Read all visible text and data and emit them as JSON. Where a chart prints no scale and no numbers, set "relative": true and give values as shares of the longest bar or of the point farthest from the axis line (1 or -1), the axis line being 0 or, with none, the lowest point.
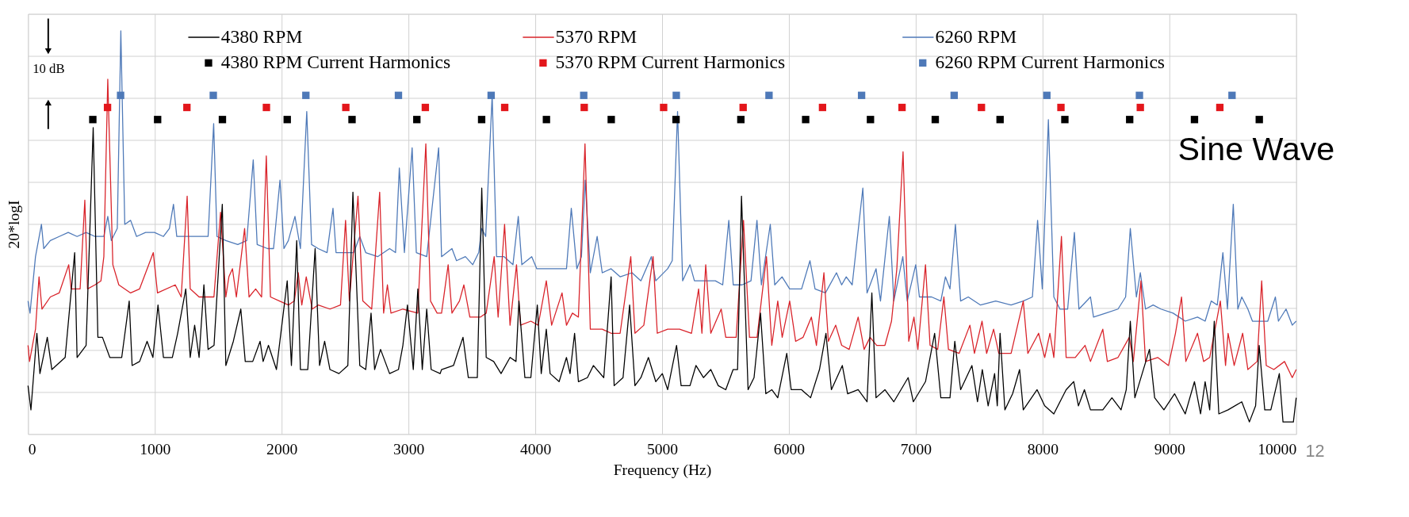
{
  "chart_data": {
    "type": "line",
    "relative": true,
    "xlabel": "Frequency (Hz)",
    "ylabel": "20*logI",
    "xlim": [
      0,
      10000
    ],
    "xticks": [
      0,
      1000,
      2000,
      3000,
      4000,
      5000,
      6000,
      7000,
      8000,
      9000,
      10000
    ],
    "grid": true,
    "legend": "top",
    "tick_labels": "x",
    "line_style": "solid",
    "annotations": [
      "10 dB",
      "Sine Wave",
      "12"
    ],
    "series": [
      {
        "name": "4380 RPM",
        "color": "#000000",
        "type": "line",
        "x": [
          0,
          23,
          70,
          94,
          152,
          188,
          293,
          368,
          387,
          458,
          514,
          551,
          587,
          645,
          739,
          798,
          821,
          880,
          939,
          985,
          1025,
          1068,
          1138,
          1180,
          1244,
          1279,
          1314,
          1349,
          1387,
          1420,
          1467,
          1532,
          1560,
          1619,
          1678,
          1713,
          1772,
          1830,
          1854,
          1896,
          1959,
          2044,
          2077,
          2119,
          2148,
          2206,
          2264,
          2299,
          2339,
          2381,
          2452,
          2522,
          2562,
          2616,
          2663,
          2705,
          2733,
          2780,
          2851,
          2921,
          2956,
          2992,
          3038,
          3074,
          3109,
          3144,
          3179,
          3250,
          3261,
          3355,
          3430,
          3472,
          3543,
          3578,
          3613,
          3672,
          3730,
          3801,
          3848,
          3871,
          3918,
          3965,
          4016,
          4047,
          4087,
          4117,
          4188,
          4246,
          4274,
          4310,
          4340,
          4411,
          4458,
          4540,
          4598,
          4622,
          4692,
          4744,
          4786,
          4833,
          4892,
          4950,
          5002,
          5044,
          5114,
          5150,
          5220,
          5267,
          5326,
          5384,
          5443,
          5502,
          5560,
          5595,
          5626,
          5678,
          5725,
          5776,
          5818,
          5865,
          5912,
          5983,
          6018,
          6100,
          6171,
          6241,
          6292,
          6335,
          6421,
          6463,
          6546,
          6616,
          6654,
          6687,
          6757,
          6827,
          6940,
          6981,
          7077,
          7149,
          7198,
          7270,
          7308,
          7354,
          7443,
          7487,
          7525,
          7571,
          7622,
          7643,
          7665,
          7703,
          7764,
          7819,
          7848,
          7957,
          8017,
          8089,
          8186,
          8246,
          8283,
          8330,
          8378,
          8475,
          8547,
          8619,
          8660,
          8692,
          8728,
          8843,
          8884,
          8957,
          9041,
          9125,
          9198,
          9246,
          9282,
          9318,
          9354,
          9390,
          9463,
          9571,
          9631,
          9680,
          9708,
          9752,
          9800,
          9867,
          9896,
          9978,
          10000
        ],
        "values": [
          0.12,
          0.06,
          0.25,
          0.15,
          0.24,
          0.16,
          0.19,
          0.45,
          0.19,
          0.22,
          0.76,
          0.24,
          0.24,
          0.19,
          0.19,
          0.33,
          0.17,
          0.18,
          0.23,
          0.19,
          0.32,
          0.19,
          0.19,
          0.25,
          0.36,
          0.19,
          0.27,
          0.19,
          0.37,
          0.21,
          0.22,
          0.57,
          0.17,
          0.23,
          0.31,
          0.18,
          0.18,
          0.23,
          0.18,
          0.22,
          0.16,
          0.38,
          0.17,
          0.48,
          0.16,
          0.16,
          0.46,
          0.17,
          0.23,
          0.16,
          0.15,
          0.17,
          0.6,
          0.17,
          0.16,
          0.3,
          0.16,
          0.21,
          0.15,
          0.16,
          0.22,
          0.32,
          0.16,
          0.36,
          0.16,
          0.31,
          0.16,
          0.15,
          0.16,
          0.17,
          0.24,
          0.14,
          0.14,
          0.61,
          0.19,
          0.18,
          0.15,
          0.19,
          0.18,
          0.33,
          0.14,
          0.14,
          0.32,
          0.15,
          0.26,
          0.15,
          0.13,
          0.19,
          0.15,
          0.25,
          0.13,
          0.14,
          0.17,
          0.14,
          0.39,
          0.12,
          0.14,
          0.32,
          0.12,
          0.14,
          0.19,
          0.13,
          0.15,
          0.11,
          0.22,
          0.12,
          0.12,
          0.17,
          0.14,
          0.16,
          0.12,
          0.11,
          0.16,
          0.16,
          0.59,
          0.11,
          0.14,
          0.3,
          0.1,
          0.11,
          0.09,
          0.2,
          0.11,
          0.11,
          0.09,
          0.16,
          0.25,
          0.11,
          0.17,
          0.1,
          0.11,
          0.08,
          0.35,
          0.09,
          0.11,
          0.08,
          0.14,
          0.08,
          0.13,
          0.25,
          0.09,
          0.09,
          0.23,
          0.11,
          0.17,
          0.08,
          0.16,
          0.07,
          0.15,
          0.07,
          0.25,
          0.06,
          0.1,
          0.16,
          0.06,
          0.11,
          0.07,
          0.05,
          0.11,
          0.13,
          0.07,
          0.11,
          0.06,
          0.06,
          0.09,
          0.06,
          0.11,
          0.28,
          0.09,
          0.21,
          0.09,
          0.06,
          0.1,
          0.05,
          0.13,
          0.05,
          0.13,
          0.06,
          0.28,
          0.05,
          0.06,
          0.08,
          0.03,
          0.07,
          0.22,
          0.06,
          0.06,
          0.15,
          0.03,
          0.03,
          0.09
        ]
      },
      {
        "name": "5370 RPM",
        "color": "#d9232a",
        "type": "line",
        "x": [
          0,
          12,
          59,
          87,
          110,
          176,
          246,
          321,
          340,
          411,
          448,
          469,
          528,
          575,
          598,
          629,
          669,
          716,
          809,
          880,
          988,
          1021,
          1161,
          1208,
          1255,
          1279,
          1349,
          1466,
          1518,
          1560,
          1584,
          1612,
          1643,
          1708,
          1743,
          1795,
          1842,
          1879,
          1912,
          1983,
          2053,
          2100,
          2131,
          2159,
          2194,
          2241,
          2288,
          2381,
          2464,
          2504,
          2534,
          2602,
          2640,
          2710,
          2773,
          2804,
          2834,
          2862,
          2956,
          3073,
          3137,
          3174,
          3226,
          3261,
          3313,
          3343,
          3402,
          3437,
          3484,
          3566,
          3613,
          3676,
          3707,
          3758,
          3801,
          3852,
          3883,
          3965,
          4023,
          4087,
          4129,
          4211,
          4246,
          4293,
          4340,
          4392,
          4434,
          4528,
          4598,
          4669,
          4753,
          4786,
          4856,
          4929,
          4962,
          5044,
          5138,
          5232,
          5288,
          5314,
          5344,
          5384,
          5466,
          5502,
          5584,
          5642,
          5689,
          5749,
          5823,
          5865,
          5912,
          5947,
          6006,
          6053,
          6112,
          6177,
          6217,
          6276,
          6311,
          6369,
          6416,
          6475,
          6546,
          6593,
          6640,
          6692,
          6757,
          6809,
          6851,
          6900,
          6945,
          6986,
          7017,
          7077,
          7113,
          7173,
          7222,
          7258,
          7342,
          7427,
          7463,
          7523,
          7559,
          7614,
          7655,
          7752,
          7848,
          7884,
          7969,
          8017,
          8058,
          8089,
          8149,
          8186,
          8258,
          8335,
          8378,
          8475,
          8511,
          8595,
          8684,
          8716,
          8776,
          8812,
          8908,
          8993,
          9048,
          9096,
          9130,
          9222,
          9270,
          9318,
          9402,
          9443,
          9463,
          9511,
          9578,
          9619,
          9692,
          9728,
          9764,
          9824,
          9908,
          9969,
          10000
        ],
        "values": [
          0.22,
          0.18,
          0.26,
          0.39,
          0.31,
          0.34,
          0.35,
          0.42,
          0.36,
          0.36,
          0.58,
          0.36,
          0.37,
          0.38,
          0.44,
          0.88,
          0.42,
          0.37,
          0.35,
          0.36,
          0.45,
          0.35,
          0.37,
          0.34,
          0.59,
          0.36,
          0.34,
          0.34,
          0.55,
          0.34,
          0.39,
          0.41,
          0.34,
          0.51,
          0.34,
          0.36,
          0.34,
          0.69,
          0.34,
          0.33,
          0.32,
          0.33,
          0.4,
          0.32,
          0.39,
          0.31,
          0.32,
          0.31,
          0.32,
          0.53,
          0.33,
          0.59,
          0.33,
          0.31,
          0.6,
          0.3,
          0.37,
          0.3,
          0.31,
          0.3,
          0.72,
          0.33,
          0.3,
          0.3,
          0.42,
          0.3,
          0.33,
          0.37,
          0.29,
          0.29,
          0.3,
          0.44,
          0.29,
          0.52,
          0.27,
          0.42,
          0.27,
          0.28,
          0.27,
          0.38,
          0.27,
          0.35,
          0.27,
          0.3,
          0.29,
          0.72,
          0.26,
          0.26,
          0.25,
          0.25,
          0.44,
          0.25,
          0.27,
          0.44,
          0.25,
          0.26,
          0.26,
          0.25,
          0.36,
          0.25,
          0.42,
          0.25,
          0.31,
          0.24,
          0.24,
          0.53,
          0.24,
          0.24,
          0.44,
          0.22,
          0.33,
          0.24,
          0.33,
          0.23,
          0.24,
          0.29,
          0.22,
          0.4,
          0.23,
          0.27,
          0.22,
          0.21,
          0.29,
          0.21,
          0.24,
          0.22,
          0.22,
          0.28,
          0.41,
          0.7,
          0.23,
          0.29,
          0.21,
          0.42,
          0.22,
          0.21,
          0.34,
          0.21,
          0.2,
          0.27,
          0.2,
          0.28,
          0.2,
          0.26,
          0.2,
          0.2,
          0.33,
          0.2,
          0.25,
          0.19,
          0.25,
          0.19,
          0.49,
          0.19,
          0.19,
          0.22,
          0.18,
          0.26,
          0.18,
          0.19,
          0.24,
          0.18,
          0.38,
          0.18,
          0.19,
          0.17,
          0.25,
          0.34,
          0.18,
          0.25,
          0.18,
          0.19,
          0.33,
          0.17,
          0.25,
          0.17,
          0.25,
          0.16,
          0.18,
          0.38,
          0.17,
          0.16,
          0.18,
          0.14,
          0.16
        ]
      },
      {
        "name": "6260 RPM",
        "color": "#4e79b8",
        "type": "line",
        "x": [
          0,
          16,
          59,
          106,
          124,
          176,
          246,
          317,
          387,
          458,
          528,
          598,
          629,
          657,
          704,
          732,
          763,
          809,
          856,
          927,
          997,
          1068,
          1115,
          1147,
          1173,
          1255,
          1349,
          1420,
          1464,
          1490,
          1560,
          1654,
          1725,
          1776,
          1807,
          1889,
          1936,
          1987,
          2018,
          2053,
          2105,
          2148,
          2198,
          2236,
          2288,
          2358,
          2405,
          2429,
          2499,
          2569,
          2616,
          2663,
          2757,
          2851,
          2898,
          2928,
          2968,
          3029,
          3062,
          3144,
          3238,
          3261,
          3343,
          3379,
          3449,
          3507,
          3554,
          3578,
          3609,
          3660,
          3695,
          3754,
          3824,
          3866,
          3894,
          3972,
          4012,
          4106,
          4199,
          4246,
          4284,
          4328,
          4364,
          4394,
          4434,
          4488,
          4528,
          4598,
          4669,
          4763,
          4833,
          4915,
          4950,
          5044,
          5080,
          5122,
          5162,
          5220,
          5255,
          5326,
          5420,
          5478,
          5526,
          5561,
          5631,
          5701,
          5748,
          5783,
          5853,
          5888,
          5946,
          6006,
          6100,
          6166,
          6206,
          6288,
          6375,
          6416,
          6452,
          6499,
          6583,
          6616,
          6687,
          6722,
          6792,
          6827,
          6898,
          6933,
          7000,
          7029,
          7125,
          7198,
          7234,
          7270,
          7313,
          7354,
          7414,
          7511,
          7631,
          7752,
          7848,
          7920,
          7961,
          7998,
          8046,
          8089,
          8137,
          8198,
          8251,
          8287,
          8378,
          8402,
          8499,
          8595,
          8655,
          8692,
          8740,
          8771,
          8812,
          8872,
          8933,
          9029,
          9125,
          9222,
          9282,
          9330,
          9378,
          9422,
          9458,
          9504,
          9540,
          9571,
          9619,
          9655,
          9728,
          9776,
          9836,
          9860,
          9920,
          9969,
          10000
        ],
        "values": [
          0.33,
          0.3,
          0.44,
          0.52,
          0.46,
          0.48,
          0.49,
          0.5,
          0.49,
          0.5,
          0.49,
          0.49,
          0.54,
          0.48,
          0.51,
          1.0,
          0.52,
          0.53,
          0.49,
          0.5,
          0.5,
          0.49,
          0.51,
          0.57,
          0.49,
          0.49,
          0.49,
          0.49,
          0.77,
          0.49,
          0.48,
          0.47,
          0.48,
          0.68,
          0.47,
          0.46,
          0.46,
          0.63,
          0.46,
          0.48,
          0.54,
          0.46,
          0.8,
          0.47,
          0.46,
          0.45,
          0.56,
          0.45,
          0.45,
          0.45,
          0.49,
          0.45,
          0.44,
          0.46,
          0.45,
          0.66,
          0.45,
          0.71,
          0.45,
          0.44,
          0.71,
          0.44,
          0.46,
          0.43,
          0.44,
          0.42,
          0.45,
          0.51,
          0.49,
          0.84,
          0.44,
          0.44,
          0.42,
          0.54,
          0.42,
          0.44,
          0.41,
          0.41,
          0.41,
          0.41,
          0.56,
          0.41,
          0.44,
          0.63,
          0.4,
          0.49,
          0.4,
          0.41,
          0.39,
          0.4,
          0.38,
          0.44,
          0.38,
          0.41,
          0.43,
          0.8,
          0.38,
          0.42,
          0.38,
          0.38,
          0.38,
          0.37,
          0.53,
          0.37,
          0.37,
          0.38,
          0.53,
          0.37,
          0.52,
          0.37,
          0.39,
          0.36,
          0.36,
          0.43,
          0.36,
          0.35,
          0.4,
          0.37,
          0.39,
          0.37,
          0.61,
          0.35,
          0.41,
          0.33,
          0.54,
          0.33,
          0.44,
          0.33,
          0.42,
          0.34,
          0.34,
          0.33,
          0.39,
          0.36,
          0.52,
          0.33,
          0.34,
          0.32,
          0.33,
          0.32,
          0.33,
          0.34,
          0.53,
          0.36,
          0.78,
          0.34,
          0.31,
          0.31,
          0.5,
          0.31,
          0.34,
          0.29,
          0.3,
          0.31,
          0.34,
          0.51,
          0.34,
          0.4,
          0.31,
          0.32,
          0.31,
          0.3,
          0.28,
          0.29,
          0.28,
          0.33,
          0.32,
          0.45,
          0.31,
          0.57,
          0.31,
          0.34,
          0.31,
          0.28,
          0.28,
          0.28,
          0.34,
          0.28,
          0.31,
          0.27,
          0.28
        ]
      },
      {
        "name": "4380 RPM Current Harmonics",
        "color": "#000000",
        "type": "scatter",
        "marker": "square",
        "x": [
          511,
          1022,
          1533,
          2044,
          2555,
          3066,
          3577,
          4088,
          4599,
          5110,
          5621,
          6132,
          6643,
          7154,
          7665,
          8176,
          8687,
          9198,
          9709
        ],
        "values": [
          0.78,
          0.78,
          0.78,
          0.78,
          0.78,
          0.78,
          0.78,
          0.78,
          0.78,
          0.78,
          0.78,
          0.78,
          0.78,
          0.78,
          0.78,
          0.78,
          0.78,
          0.78,
          0.78
        ]
      },
      {
        "name": "5370 RPM Current Harmonics",
        "color": "#e3161b",
        "type": "scatter",
        "marker": "square",
        "x": [
          627,
          1253,
          1880,
          2506,
          3133,
          3759,
          4386,
          5012,
          5639,
          6265,
          6892,
          7518,
          8145,
          8771,
          9398
        ],
        "values": [
          0.81,
          0.81,
          0.81,
          0.81,
          0.81,
          0.81,
          0.81,
          0.81,
          0.81,
          0.81,
          0.81,
          0.81,
          0.81,
          0.81,
          0.81
        ]
      },
      {
        "name": "6260 RPM Current Harmonics",
        "color": "#4e79b8",
        "type": "scatter",
        "marker": "square",
        "x": [
          730,
          1461,
          2191,
          2921,
          3652,
          4382,
          5112,
          5843,
          6573,
          7303,
          8034,
          8764,
          9494
        ],
        "values": [
          0.84,
          0.84,
          0.84,
          0.84,
          0.84,
          0.84,
          0.84,
          0.84,
          0.84,
          0.84,
          0.84,
          0.84,
          0.84
        ]
      }
    ]
  }
}
